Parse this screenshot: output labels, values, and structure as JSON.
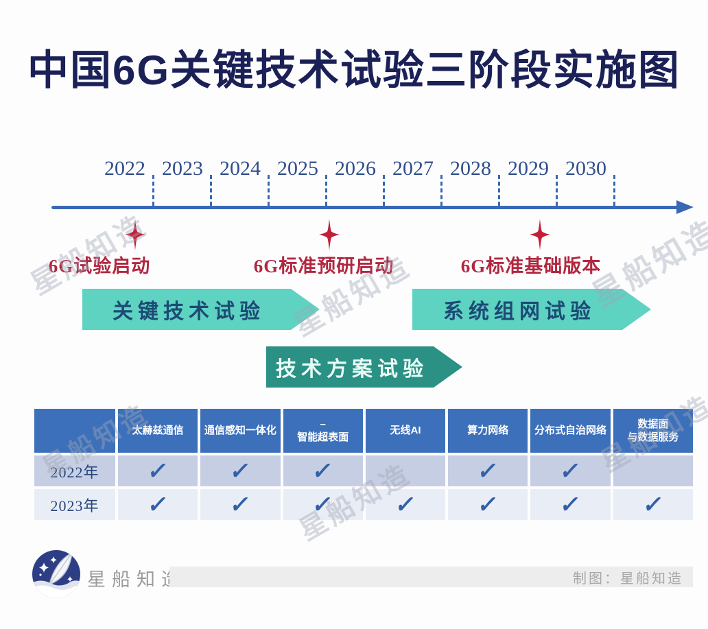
{
  "title": "中国6G关键技术试验三阶段实施图",
  "watermark": "星船知造",
  "chart_data": {
    "type": "table",
    "title": "中国6G关键技术试验三阶段实施图",
    "timeline": {
      "axis_years": [
        "2022",
        "2023",
        "2024",
        "2025",
        "2026",
        "2027",
        "2028",
        "2029",
        "2030"
      ],
      "milestones": [
        {
          "year": 2022,
          "label": "6G试验启动"
        },
        {
          "year": 2026,
          "label": "6G标准预研启动"
        },
        {
          "year": 2029,
          "label": "6G标准基础版本"
        }
      ],
      "phases": [
        {
          "label": "关键技术试验",
          "approx_span": "2022-2026"
        },
        {
          "label": "系统组网试验",
          "approx_span": "2027-2030"
        },
        {
          "label": "技术方案试验",
          "approx_span": "2025-2027"
        }
      ]
    },
    "categories": [
      "太赫兹通信",
      "通信感知一体化",
      "智能超表面",
      "无线AI",
      "算力网络",
      "分布式自治网络",
      "数据面与数据服务"
    ],
    "series": [
      {
        "name": "2022年",
        "values": [
          1,
          1,
          1,
          0,
          1,
          1,
          0
        ]
      },
      {
        "name": "2023年",
        "values": [
          1,
          1,
          1,
          1,
          1,
          1,
          1
        ]
      }
    ]
  },
  "timeline": {
    "years": [
      "2022",
      "2023",
      "2024",
      "2025",
      "2026",
      "2027",
      "2028",
      "2029",
      "2030"
    ],
    "milestones": [
      {
        "label": "6G试验启动"
      },
      {
        "label": "6G标准预研启动"
      },
      {
        "label": "6G标准基础版本"
      }
    ]
  },
  "phases": [
    {
      "label": "关键技术试验"
    },
    {
      "label": "系统组网试验"
    },
    {
      "label": "技术方案试验"
    }
  ],
  "table": {
    "columns": [
      "太赫兹通信",
      "通信感知一体化",
      "–\n智能超表面",
      "无线AI",
      "算力网络",
      "分布式自治网络",
      "数据面\n与数据服务"
    ],
    "rows": [
      {
        "label": "2022年",
        "checks": [
          true,
          true,
          true,
          false,
          true,
          true,
          false
        ]
      },
      {
        "label": "2023年",
        "checks": [
          true,
          true,
          true,
          true,
          true,
          true,
          true
        ]
      }
    ],
    "check_glyph": "✓"
  },
  "footer": {
    "brand": "星船知造",
    "credit": "制图：星船知造"
  },
  "colors": {
    "title_navy": "#1b2157",
    "timeline_blue": "#3a68b4",
    "milestone_red": "#c2203a",
    "milestone_text_red": "#b22740",
    "phase_light_teal": "#5ed3c2",
    "phase_dark_teal": "#2a9184",
    "header_blue": "#3d70ba",
    "row_dark": "#c6cee3",
    "row_light": "#e9edf6",
    "check_blue": "#3160a8"
  }
}
